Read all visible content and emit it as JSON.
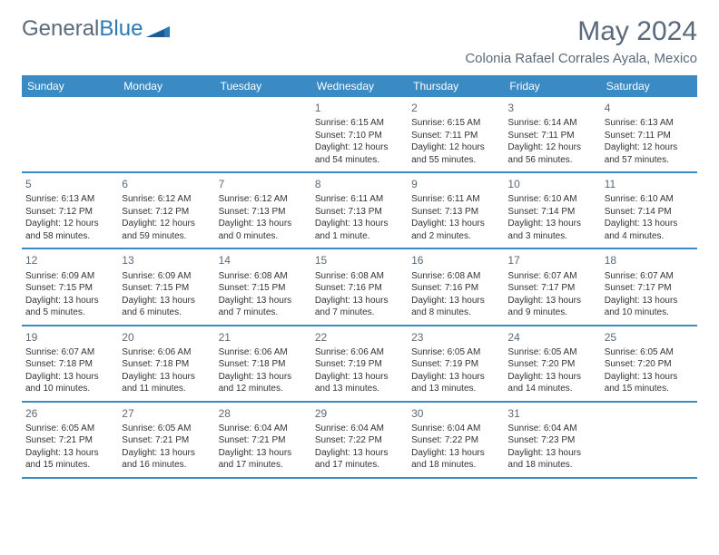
{
  "brand": {
    "part1": "General",
    "part2": "Blue"
  },
  "title": "May 2024",
  "location": "Colonia Rafael Corrales Ayala, Mexico",
  "colors": {
    "header_bg": "#3a8ac4",
    "header_text": "#ffffff",
    "border": "#3a8ac4",
    "body_text": "#333333",
    "muted_text": "#5a6a7a",
    "background": "#ffffff",
    "brand_blue": "#2a7ab8"
  },
  "typography": {
    "title_fontsize": 30,
    "location_fontsize": 15,
    "header_fontsize": 12,
    "daynum_fontsize": 12,
    "body_fontsize": 10
  },
  "dayHeaders": [
    "Sunday",
    "Monday",
    "Tuesday",
    "Wednesday",
    "Thursday",
    "Friday",
    "Saturday"
  ],
  "weeks": [
    [
      {
        "num": "",
        "lines": []
      },
      {
        "num": "",
        "lines": []
      },
      {
        "num": "",
        "lines": []
      },
      {
        "num": "1",
        "lines": [
          "Sunrise: 6:15 AM",
          "Sunset: 7:10 PM",
          "Daylight: 12 hours and 54 minutes."
        ]
      },
      {
        "num": "2",
        "lines": [
          "Sunrise: 6:15 AM",
          "Sunset: 7:11 PM",
          "Daylight: 12 hours and 55 minutes."
        ]
      },
      {
        "num": "3",
        "lines": [
          "Sunrise: 6:14 AM",
          "Sunset: 7:11 PM",
          "Daylight: 12 hours and 56 minutes."
        ]
      },
      {
        "num": "4",
        "lines": [
          "Sunrise: 6:13 AM",
          "Sunset: 7:11 PM",
          "Daylight: 12 hours and 57 minutes."
        ]
      }
    ],
    [
      {
        "num": "5",
        "lines": [
          "Sunrise: 6:13 AM",
          "Sunset: 7:12 PM",
          "Daylight: 12 hours and 58 minutes."
        ]
      },
      {
        "num": "6",
        "lines": [
          "Sunrise: 6:12 AM",
          "Sunset: 7:12 PM",
          "Daylight: 12 hours and 59 minutes."
        ]
      },
      {
        "num": "7",
        "lines": [
          "Sunrise: 6:12 AM",
          "Sunset: 7:13 PM",
          "Daylight: 13 hours and 0 minutes."
        ]
      },
      {
        "num": "8",
        "lines": [
          "Sunrise: 6:11 AM",
          "Sunset: 7:13 PM",
          "Daylight: 13 hours and 1 minute."
        ]
      },
      {
        "num": "9",
        "lines": [
          "Sunrise: 6:11 AM",
          "Sunset: 7:13 PM",
          "Daylight: 13 hours and 2 minutes."
        ]
      },
      {
        "num": "10",
        "lines": [
          "Sunrise: 6:10 AM",
          "Sunset: 7:14 PM",
          "Daylight: 13 hours and 3 minutes."
        ]
      },
      {
        "num": "11",
        "lines": [
          "Sunrise: 6:10 AM",
          "Sunset: 7:14 PM",
          "Daylight: 13 hours and 4 minutes."
        ]
      }
    ],
    [
      {
        "num": "12",
        "lines": [
          "Sunrise: 6:09 AM",
          "Sunset: 7:15 PM",
          "Daylight: 13 hours and 5 minutes."
        ]
      },
      {
        "num": "13",
        "lines": [
          "Sunrise: 6:09 AM",
          "Sunset: 7:15 PM",
          "Daylight: 13 hours and 6 minutes."
        ]
      },
      {
        "num": "14",
        "lines": [
          "Sunrise: 6:08 AM",
          "Sunset: 7:15 PM",
          "Daylight: 13 hours and 7 minutes."
        ]
      },
      {
        "num": "15",
        "lines": [
          "Sunrise: 6:08 AM",
          "Sunset: 7:16 PM",
          "Daylight: 13 hours and 7 minutes."
        ]
      },
      {
        "num": "16",
        "lines": [
          "Sunrise: 6:08 AM",
          "Sunset: 7:16 PM",
          "Daylight: 13 hours and 8 minutes."
        ]
      },
      {
        "num": "17",
        "lines": [
          "Sunrise: 6:07 AM",
          "Sunset: 7:17 PM",
          "Daylight: 13 hours and 9 minutes."
        ]
      },
      {
        "num": "18",
        "lines": [
          "Sunrise: 6:07 AM",
          "Sunset: 7:17 PM",
          "Daylight: 13 hours and 10 minutes."
        ]
      }
    ],
    [
      {
        "num": "19",
        "lines": [
          "Sunrise: 6:07 AM",
          "Sunset: 7:18 PM",
          "Daylight: 13 hours and 10 minutes."
        ]
      },
      {
        "num": "20",
        "lines": [
          "Sunrise: 6:06 AM",
          "Sunset: 7:18 PM",
          "Daylight: 13 hours and 11 minutes."
        ]
      },
      {
        "num": "21",
        "lines": [
          "Sunrise: 6:06 AM",
          "Sunset: 7:18 PM",
          "Daylight: 13 hours and 12 minutes."
        ]
      },
      {
        "num": "22",
        "lines": [
          "Sunrise: 6:06 AM",
          "Sunset: 7:19 PM",
          "Daylight: 13 hours and 13 minutes."
        ]
      },
      {
        "num": "23",
        "lines": [
          "Sunrise: 6:05 AM",
          "Sunset: 7:19 PM",
          "Daylight: 13 hours and 13 minutes."
        ]
      },
      {
        "num": "24",
        "lines": [
          "Sunrise: 6:05 AM",
          "Sunset: 7:20 PM",
          "Daylight: 13 hours and 14 minutes."
        ]
      },
      {
        "num": "25",
        "lines": [
          "Sunrise: 6:05 AM",
          "Sunset: 7:20 PM",
          "Daylight: 13 hours and 15 minutes."
        ]
      }
    ],
    [
      {
        "num": "26",
        "lines": [
          "Sunrise: 6:05 AM",
          "Sunset: 7:21 PM",
          "Daylight: 13 hours and 15 minutes."
        ]
      },
      {
        "num": "27",
        "lines": [
          "Sunrise: 6:05 AM",
          "Sunset: 7:21 PM",
          "Daylight: 13 hours and 16 minutes."
        ]
      },
      {
        "num": "28",
        "lines": [
          "Sunrise: 6:04 AM",
          "Sunset: 7:21 PM",
          "Daylight: 13 hours and 17 minutes."
        ]
      },
      {
        "num": "29",
        "lines": [
          "Sunrise: 6:04 AM",
          "Sunset: 7:22 PM",
          "Daylight: 13 hours and 17 minutes."
        ]
      },
      {
        "num": "30",
        "lines": [
          "Sunrise: 6:04 AM",
          "Sunset: 7:22 PM",
          "Daylight: 13 hours and 18 minutes."
        ]
      },
      {
        "num": "31",
        "lines": [
          "Sunrise: 6:04 AM",
          "Sunset: 7:23 PM",
          "Daylight: 13 hours and 18 minutes."
        ]
      },
      {
        "num": "",
        "lines": []
      }
    ]
  ]
}
